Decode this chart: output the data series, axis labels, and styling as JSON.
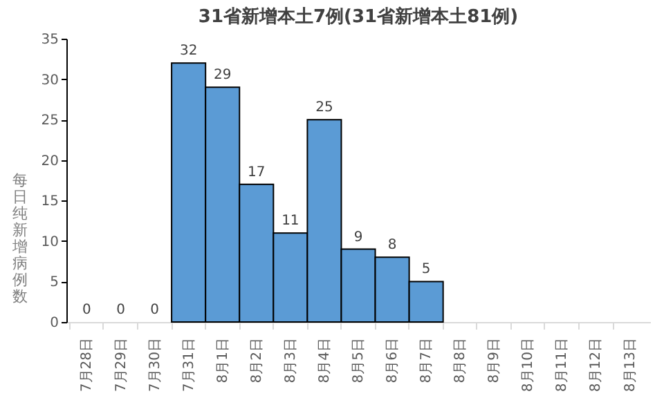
{
  "chart_data": {
    "type": "bar",
    "title": "31省新增本土7例(31省新增本土81例)",
    "ylabel": "每日纯新增病例数",
    "categories": [
      "7月28日",
      "7月29日",
      "7月30日",
      "7月31日",
      "8月1日",
      "8月2日",
      "8月3日",
      "8月4日",
      "8月5日",
      "8月6日",
      "8月7日",
      "8月8日",
      "8月9日",
      "8月10日",
      "8月11日",
      "8月12日",
      "8月13日"
    ],
    "values": [
      0,
      0,
      0,
      32,
      29,
      17,
      11,
      25,
      9,
      8,
      5,
      null,
      null,
      null,
      null,
      null,
      null
    ],
    "color": "#5b9bd5",
    "ylim": [
      0,
      35
    ],
    "yticks": [
      0,
      5,
      10,
      15,
      20,
      25,
      30,
      35
    ],
    "grid": false,
    "data_labels": true
  }
}
